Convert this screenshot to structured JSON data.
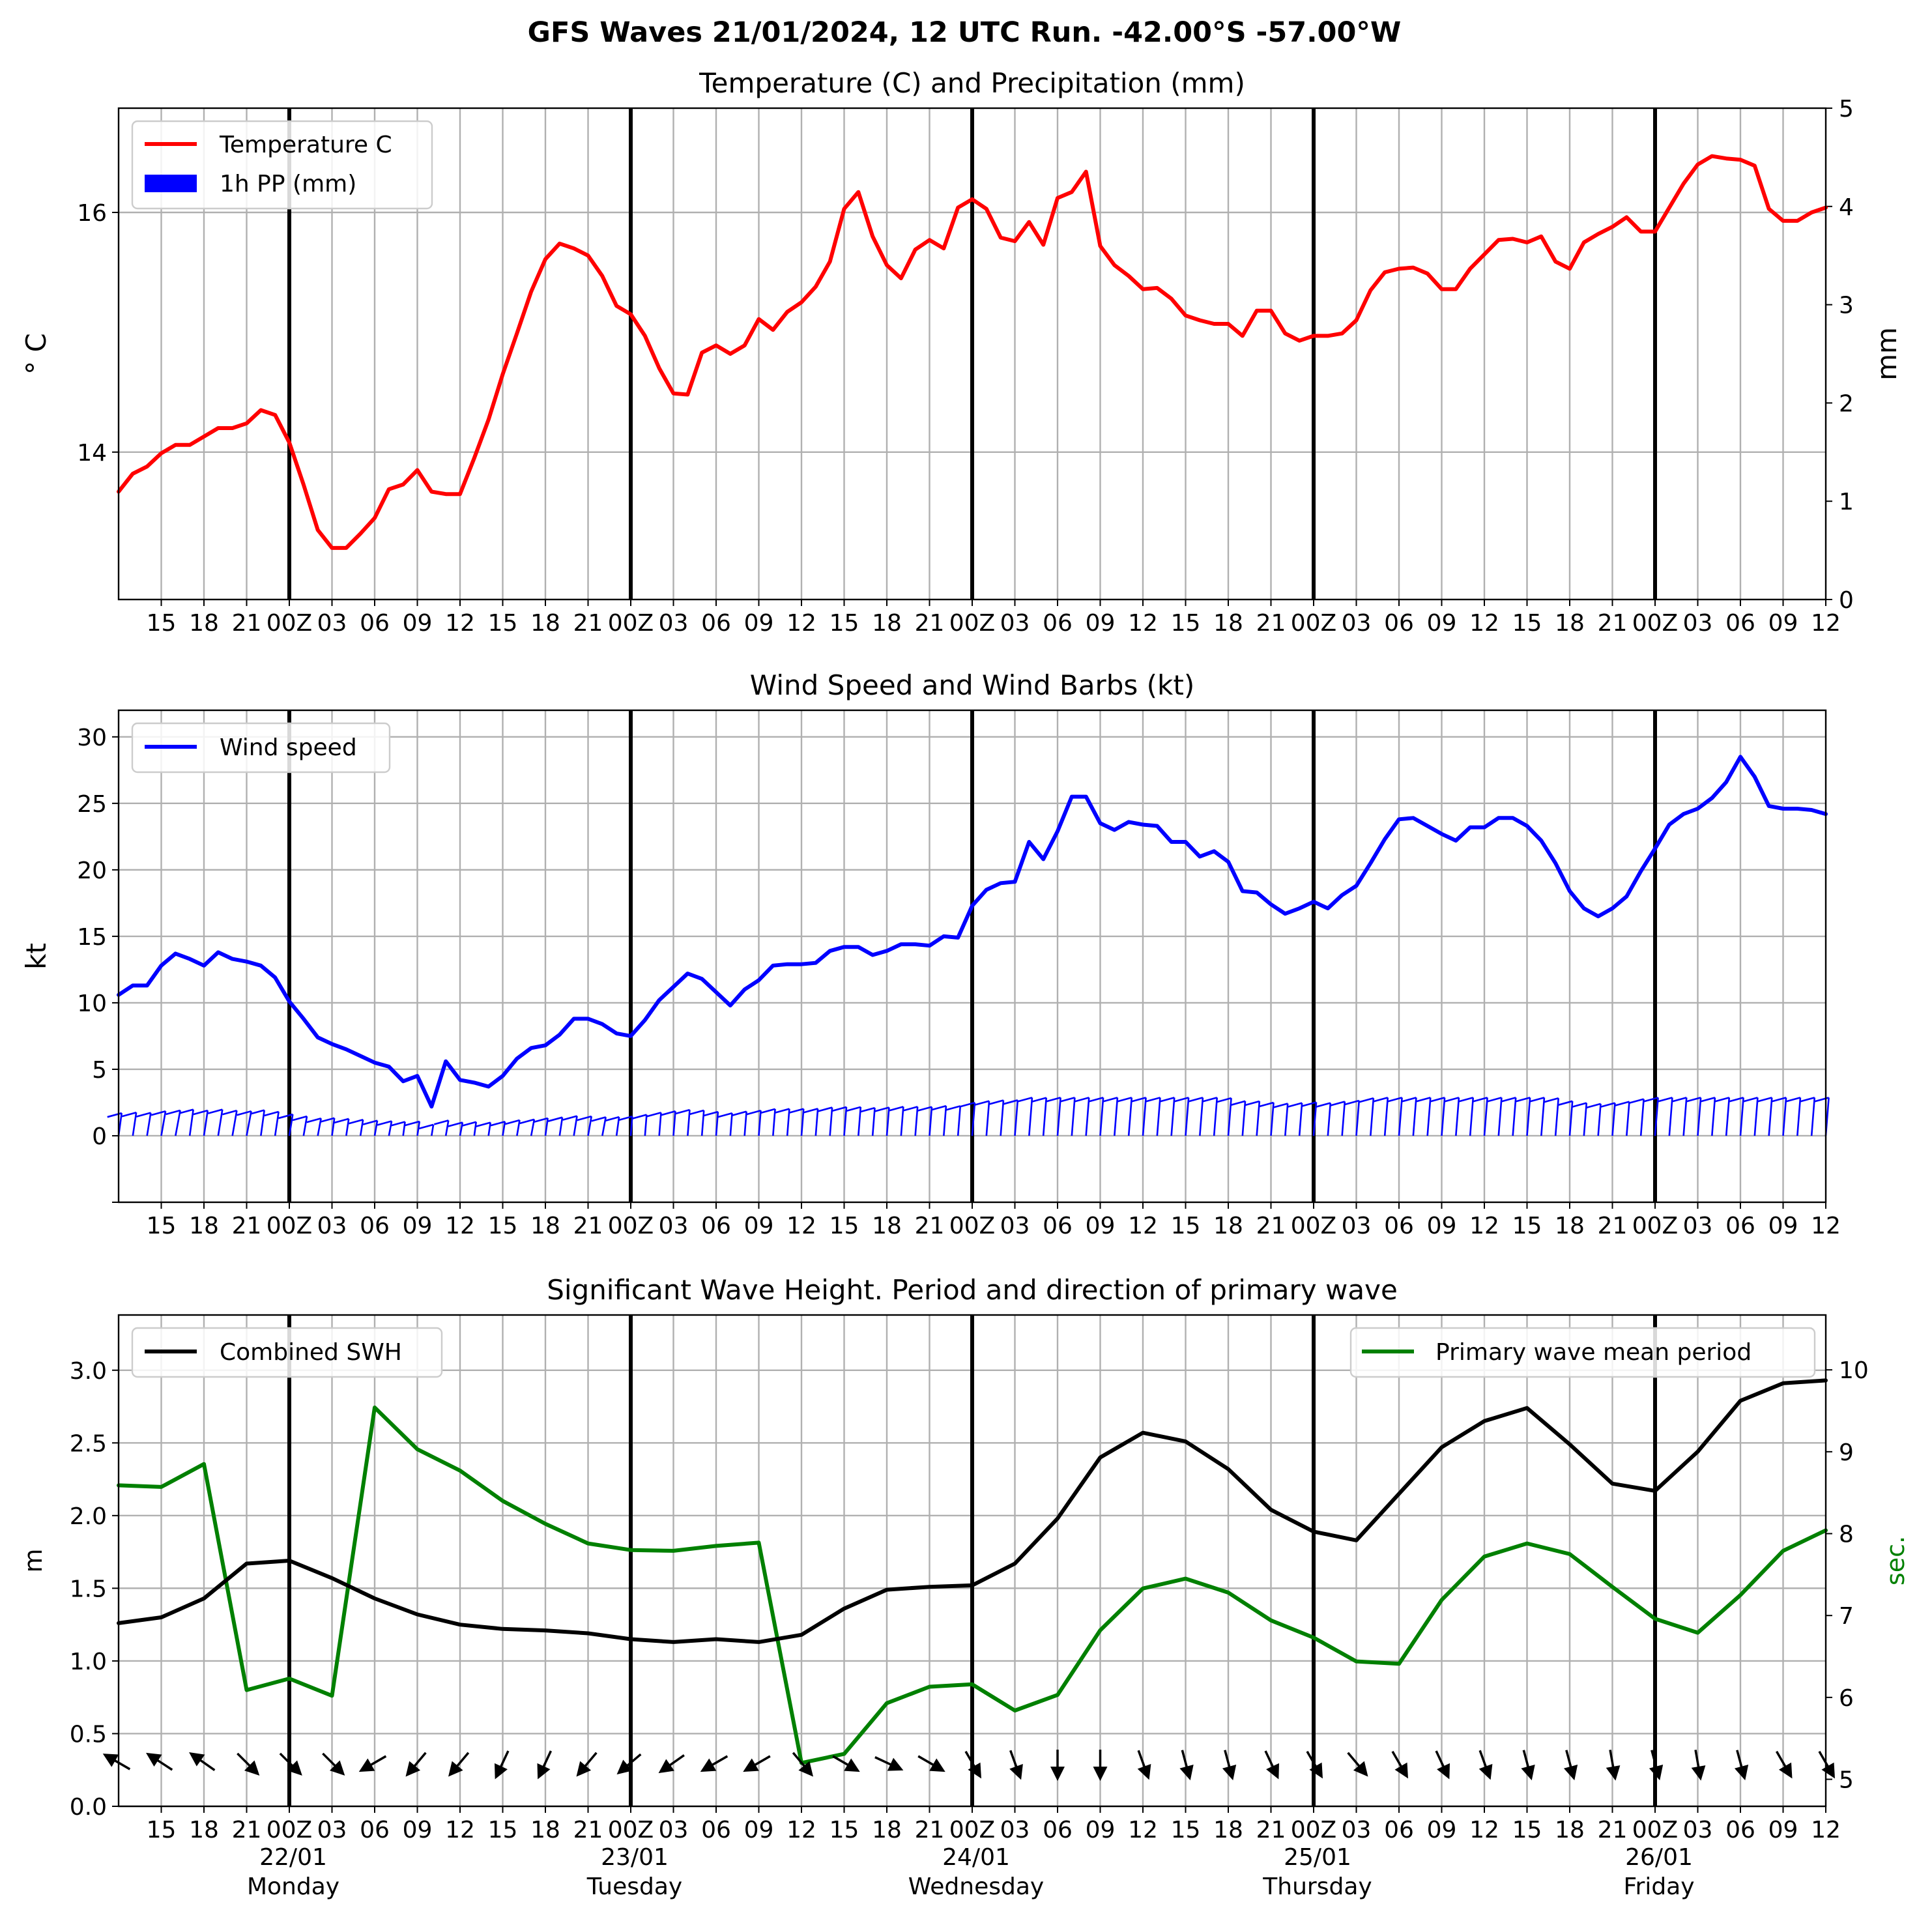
{
  "figure": {
    "suptitle": "GFS Waves 21/01/2024, 12 UTC Run. -42.00°S -57.00°W"
  },
  "time_axis": {
    "hour_tick_labels": [
      "15",
      "18",
      "21",
      "00Z",
      "03",
      "06",
      "09",
      "12",
      "15",
      "18",
      "21",
      "00Z",
      "03",
      "06",
      "09",
      "12",
      "15",
      "18",
      "21",
      "00Z",
      "03",
      "06",
      "09",
      "12",
      "15",
      "18",
      "21",
      "00Z",
      "03",
      "06",
      "09",
      "12",
      "15",
      "18",
      "21",
      "00Z",
      "03",
      "06",
      "09",
      "12"
    ],
    "day_labels": [
      {
        "date": "22/01",
        "weekday": "Monday"
      },
      {
        "date": "23/01",
        "weekday": "Tuesday"
      },
      {
        "date": "24/01",
        "weekday": "Wednesday"
      },
      {
        "date": "25/01",
        "weekday": "Thursday"
      },
      {
        "date": "26/01",
        "weekday": "Friday"
      }
    ]
  },
  "chart_data": [
    {
      "type": "line",
      "title": "Temperature (C) and Precipitation (mm)",
      "ylabel": "° C",
      "ylabel_right": "mm",
      "ylim": [
        12.77,
        16.87
      ],
      "ylim_right": [
        0,
        5
      ],
      "yticks": [
        14,
        16
      ],
      "yticks_right": [
        0,
        1,
        2,
        3,
        4,
        5
      ],
      "x_unit": "hours since 2024-01-21 12:00 UTC",
      "xlim": [
        0,
        120
      ],
      "grid": true,
      "legend_position": "upper left",
      "series": [
        {
          "name": "Temperature C",
          "color": "#ff0000",
          "x": [
            0,
            1,
            2,
            3,
            4,
            5,
            6,
            7,
            8,
            9,
            10,
            11,
            12,
            13,
            14,
            15,
            16,
            17,
            18,
            19,
            20,
            21,
            22,
            23,
            24,
            25,
            26,
            27,
            28,
            29,
            30,
            31,
            32,
            33,
            34,
            35,
            36,
            37,
            38,
            39,
            40,
            41,
            42,
            43,
            44,
            45,
            46,
            47,
            48,
            49,
            50,
            51,
            52,
            53,
            54,
            55,
            56,
            57,
            58,
            59,
            60,
            61,
            62,
            63,
            64,
            65,
            66,
            67,
            68,
            69,
            70,
            71,
            72,
            73,
            74,
            75,
            76,
            77,
            78,
            79,
            80,
            81,
            82,
            83,
            84,
            85,
            86,
            87,
            88,
            89,
            90,
            91,
            92,
            93,
            94,
            95,
            96,
            97,
            98,
            99,
            100,
            101,
            102,
            103,
            104,
            105,
            106,
            107,
            108,
            109,
            110,
            111,
            112,
            113,
            114,
            115,
            116,
            117,
            118,
            119,
            120
          ],
          "values": [
            13.67,
            13.82,
            13.88,
            13.99,
            14.06,
            14.06,
            14.13,
            14.2,
            14.2,
            14.24,
            14.35,
            14.31,
            14.08,
            13.73,
            13.35,
            13.2,
            13.2,
            13.32,
            13.45,
            13.69,
            13.73,
            13.85,
            13.67,
            13.65,
            13.65,
            13.95,
            14.27,
            14.65,
            14.99,
            15.34,
            15.61,
            15.74,
            15.7,
            15.64,
            15.47,
            15.22,
            15.15,
            14.97,
            14.7,
            14.49,
            14.48,
            14.83,
            14.89,
            14.82,
            14.89,
            15.11,
            15.02,
            15.17,
            15.25,
            15.38,
            15.59,
            16.03,
            16.17,
            15.8,
            15.56,
            15.45,
            15.69,
            15.77,
            15.7,
            16.04,
            16.11,
            16.03,
            15.79,
            15.76,
            15.92,
            15.73,
            16.12,
            16.17,
            16.34,
            15.72,
            15.56,
            15.47,
            15.36,
            15.37,
            15.28,
            15.14,
            15.1,
            15.07,
            15.07,
            14.97,
            15.18,
            15.18,
            14.99,
            14.93,
            14.97,
            14.97,
            14.99,
            15.1,
            15.35,
            15.5,
            15.53,
            15.54,
            15.49,
            15.36,
            15.36,
            15.53,
            15.65,
            15.77,
            15.78,
            15.75,
            15.8,
            15.59,
            15.53,
            15.75,
            15.82,
            15.88,
            15.96,
            15.84,
            15.84,
            16.04,
            16.24,
            16.4,
            16.47,
            16.45,
            16.44,
            16.39,
            16.03,
            15.93,
            15.93,
            16.0,
            16.04
          ]
        },
        {
          "name": "1h PP (mm)",
          "color": "#0000ff",
          "type": "bar",
          "x": [],
          "values": []
        }
      ]
    },
    {
      "type": "line",
      "title": "Wind Speed and Wind Barbs (kt)",
      "ylabel": "kt",
      "ylim": [
        -5,
        32
      ],
      "yticks": [
        0,
        5,
        10,
        15,
        20,
        25,
        30
      ],
      "x_unit": "hours since 2024-01-21 12:00 UTC",
      "xlim": [
        0,
        120
      ],
      "grid": true,
      "legend_position": "upper left",
      "series": [
        {
          "name": "Wind speed",
          "color": "#0000ff",
          "x": [
            0,
            1,
            2,
            3,
            4,
            5,
            6,
            7,
            8,
            9,
            10,
            11,
            12,
            13,
            14,
            15,
            16,
            17,
            18,
            19,
            20,
            21,
            22,
            23,
            24,
            25,
            26,
            27,
            28,
            29,
            30,
            31,
            32,
            33,
            34,
            35,
            36,
            37,
            38,
            39,
            40,
            41,
            42,
            43,
            44,
            45,
            46,
            47,
            48,
            49,
            50,
            51,
            52,
            53,
            54,
            55,
            56,
            57,
            58,
            59,
            60,
            61,
            62,
            63,
            64,
            65,
            66,
            67,
            68,
            69,
            70,
            71,
            72,
            73,
            74,
            75,
            76,
            77,
            78,
            79,
            80,
            81,
            82,
            83,
            84,
            85,
            86,
            87,
            88,
            89,
            90,
            91,
            92,
            93,
            94,
            95,
            96,
            97,
            98,
            99,
            100,
            101,
            102,
            103,
            104,
            105,
            106,
            107,
            108,
            109,
            110,
            111,
            112,
            113,
            114,
            115,
            116,
            117,
            118,
            119,
            120
          ],
          "values": [
            10.6,
            11.3,
            11.3,
            12.8,
            13.7,
            13.3,
            12.8,
            13.8,
            13.3,
            13.1,
            12.8,
            11.9,
            10.1,
            8.8,
            7.4,
            6.9,
            6.5,
            6.0,
            5.5,
            5.2,
            4.1,
            4.5,
            2.2,
            5.6,
            4.2,
            4.0,
            3.7,
            4.5,
            5.8,
            6.6,
            6.8,
            7.6,
            8.8,
            8.8,
            8.4,
            7.7,
            7.5,
            8.7,
            10.2,
            11.2,
            12.2,
            11.8,
            10.8,
            9.8,
            11.0,
            11.7,
            12.8,
            12.9,
            12.9,
            13.0,
            13.9,
            14.2,
            14.2,
            13.6,
            13.9,
            14.4,
            14.4,
            14.3,
            15.0,
            14.9,
            17.3,
            18.5,
            19.0,
            19.1,
            22.1,
            20.8,
            22.9,
            25.5,
            25.5,
            23.5,
            23.0,
            23.6,
            23.4,
            23.3,
            22.1,
            22.1,
            21.0,
            21.4,
            20.6,
            18.4,
            18.3,
            17.4,
            16.7,
            17.1,
            17.6,
            17.1,
            18.1,
            18.8,
            20.5,
            22.3,
            23.8,
            23.9,
            23.3,
            22.7,
            22.2,
            23.2,
            23.2,
            23.9,
            23.9,
            23.3,
            22.2,
            20.5,
            18.4,
            17.1,
            16.5,
            17.1,
            18.0,
            19.9,
            21.6,
            23.4,
            24.2,
            24.6,
            25.4,
            26.6,
            28.5,
            27.0,
            24.8,
            24.6,
            24.6,
            24.5,
            24.2
          ]
        }
      ]
    },
    {
      "type": "line",
      "title": "Significant Wave Height. Period and direction of primary wave",
      "ylabel": "m",
      "ylabel_right": "sec.",
      "ylim": [
        0,
        3.38
      ],
      "ylim_right": [
        4.67,
        10.67
      ],
      "yticks": [
        0.0,
        0.5,
        1.0,
        1.5,
        2.0,
        2.5,
        3.0
      ],
      "yticks_right": [
        5,
        6,
        7,
        8,
        9,
        10
      ],
      "x_unit": "hours since 2024-01-21 12:00 UTC",
      "xlim": [
        0,
        120
      ],
      "grid": true,
      "legend_position": "upper left / upper right",
      "series": [
        {
          "name": "Combined SWH",
          "color": "#000000",
          "axis": "left",
          "x": [
            0,
            3,
            6,
            9,
            12,
            15,
            18,
            21,
            24,
            27,
            30,
            33,
            36,
            39,
            42,
            45,
            48,
            51,
            54,
            57,
            60,
            63,
            66,
            69,
            72,
            75,
            78,
            81,
            84,
            87,
            90,
            93,
            96,
            99,
            102,
            105,
            108,
            111,
            114,
            117,
            120
          ],
          "values": [
            1.26,
            1.3,
            1.43,
            1.67,
            1.69,
            1.57,
            1.43,
            1.32,
            1.25,
            1.22,
            1.21,
            1.19,
            1.15,
            1.13,
            1.15,
            1.13,
            1.18,
            1.36,
            1.49,
            1.51,
            1.52,
            1.67,
            1.98,
            2.4,
            2.57,
            2.51,
            2.32,
            2.04,
            1.89,
            1.83,
            2.15,
            2.47,
            2.65,
            2.74,
            2.49,
            2.22,
            2.17,
            2.44,
            2.79,
            2.91,
            2.93
          ]
        },
        {
          "name": "Primary wave mean period",
          "color": "#008000",
          "axis": "right",
          "x": [
            0,
            3,
            6,
            9,
            12,
            15,
            18,
            21,
            24,
            27,
            30,
            33,
            36,
            39,
            42,
            45,
            48,
            51,
            54,
            57,
            60,
            63,
            66,
            69,
            72,
            75,
            78,
            81,
            84,
            87,
            90,
            93,
            96,
            99,
            102,
            105,
            108,
            111,
            114,
            117,
            120
          ],
          "values": [
            8.59,
            8.57,
            8.85,
            6.09,
            6.23,
            6.02,
            9.54,
            9.03,
            8.77,
            8.4,
            8.12,
            7.88,
            7.8,
            7.79,
            7.85,
            7.89,
            5.2,
            5.31,
            5.93,
            6.13,
            6.16,
            5.84,
            6.03,
            6.82,
            7.33,
            7.45,
            7.28,
            6.94,
            6.73,
            6.44,
            6.41,
            7.19,
            7.72,
            7.88,
            7.75,
            7.35,
            6.96,
            6.79,
            7.25,
            7.79,
            8.04
          ]
        }
      ],
      "primary_wave_direction_deg_from": [
        120,
        123,
        125,
        315,
        315,
        315,
        60,
        40,
        40,
        25,
        25,
        40,
        50,
        55,
        60,
        60,
        320,
        300,
        295,
        300,
        330,
        340,
        0,
        0,
        340,
        345,
        345,
        335,
        330,
        320,
        330,
        335,
        340,
        345,
        345,
        350,
        345,
        350,
        345,
        330,
        330
      ]
    }
  ]
}
